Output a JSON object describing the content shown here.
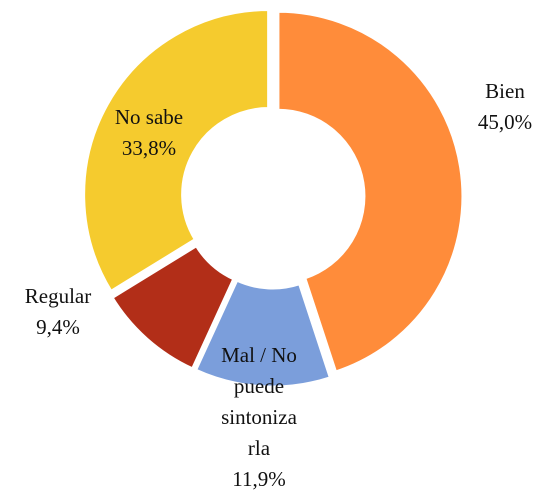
{
  "chart_data": {
    "type": "donut",
    "categories": [
      "Bien",
      "Mal / No puede sintonizarla",
      "Regular",
      "No sabe"
    ],
    "values": [
      45.0,
      11.9,
      9.4,
      33.8
    ],
    "value_labels": [
      "45,0%",
      "11,9%",
      "9,4%",
      "33,8%"
    ],
    "colors": [
      "#ff8c3a",
      "#7b9edb",
      "#b22e18",
      "#f5cb2e"
    ]
  }
}
